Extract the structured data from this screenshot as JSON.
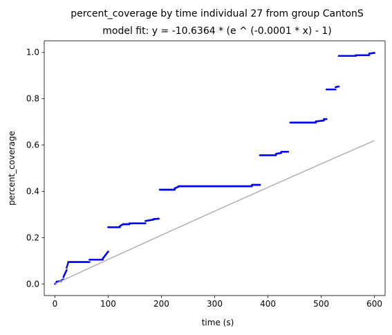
{
  "chart_data": {
    "type": "scatter",
    "title": "percent_coverage by time individual 27 from group CantonS",
    "subtitle": "model fit: y = -10.6364 * (e ^ (-0.0001 * x) - 1)",
    "xlabel": "time (s)",
    "ylabel": "percent_coverage",
    "xlim": [
      -20,
      620
    ],
    "ylim": [
      -0.05,
      1.05
    ],
    "xticks": [
      0,
      100,
      200,
      300,
      400,
      500,
      600
    ],
    "xtick_labels": [
      "0",
      "100",
      "200",
      "300",
      "400",
      "500",
      "600"
    ],
    "yticks": [
      0.0,
      0.2,
      0.4,
      0.6,
      0.8,
      1.0
    ],
    "ytick_labels": [
      "0.0",
      "0.2",
      "0.4",
      "0.6",
      "0.8",
      "1.0"
    ],
    "grid": false,
    "legend": "none",
    "colors": {
      "points": "#0000ff",
      "fit": "#b0b0b0"
    },
    "fit_model": {
      "a": -10.6364,
      "b": -0.0001,
      "x_range": [
        0,
        600
      ]
    },
    "series": [
      {
        "segments": [
          {
            "x": [
              0,
              3
            ],
            "y": [
              0.0,
              0.005
            ]
          },
          {
            "x": [
              3,
              12
            ],
            "y": [
              0.01,
              0.012
            ]
          },
          {
            "x": [
              12,
              16
            ],
            "y": [
              0.015,
              0.02
            ]
          },
          {
            "x": [
              16,
              22
            ],
            "y": [
              0.03,
              0.06
            ]
          },
          {
            "x": [
              22,
              25
            ],
            "y": [
              0.07,
              0.093
            ]
          },
          {
            "x": [
              25,
              65
            ],
            "y": [
              0.095,
              0.095
            ]
          },
          {
            "x": [
              65,
              90
            ],
            "y": [
              0.105,
              0.105
            ]
          },
          {
            "x": [
              90,
              100
            ],
            "y": [
              0.11,
              0.14
            ]
          },
          {
            "x": [
              100,
              122
            ],
            "y": [
              0.245,
              0.245
            ]
          },
          {
            "x": [
              122,
              128
            ],
            "y": [
              0.25,
              0.258
            ]
          },
          {
            "x": [
              128,
              140
            ],
            "y": [
              0.258,
              0.258
            ]
          },
          {
            "x": [
              140,
              170
            ],
            "y": [
              0.262,
              0.262
            ]
          },
          {
            "x": [
              170,
              185
            ],
            "y": [
              0.272,
              0.278
            ]
          },
          {
            "x": [
              185,
              195
            ],
            "y": [
              0.28,
              0.282
            ]
          },
          {
            "x": [
              197,
              225
            ],
            "y": [
              0.407,
              0.407
            ]
          },
          {
            "x": [
              225,
              232
            ],
            "y": [
              0.413,
              0.42
            ]
          },
          {
            "x": [
              232,
              370
            ],
            "y": [
              0.422,
              0.422
            ]
          },
          {
            "x": [
              370,
              385
            ],
            "y": [
              0.428,
              0.428
            ]
          },
          {
            "x": [
              385,
              415
            ],
            "y": [
              0.556,
              0.556
            ]
          },
          {
            "x": [
              415,
              425
            ],
            "y": [
              0.562,
              0.566
            ]
          },
          {
            "x": [
              425,
              438
            ],
            "y": [
              0.571,
              0.571
            ]
          },
          {
            "x": [
              442,
              490
            ],
            "y": [
              0.697,
              0.697
            ]
          },
          {
            "x": [
              490,
              505
            ],
            "y": [
              0.702,
              0.706
            ]
          },
          {
            "x": [
              505,
              510
            ],
            "y": [
              0.712,
              0.712
            ]
          },
          {
            "x": [
              510,
              527
            ],
            "y": [
              0.84,
              0.84
            ]
          },
          {
            "x": [
              527,
              533
            ],
            "y": [
              0.85,
              0.853
            ]
          },
          {
            "x": [
              533,
              565
            ],
            "y": [
              0.985,
              0.985
            ]
          },
          {
            "x": [
              565,
              590
            ],
            "y": [
              0.988,
              0.988
            ]
          },
          {
            "x": [
              590,
              600
            ],
            "y": [
              0.995,
              0.998
            ]
          }
        ]
      }
    ]
  }
}
